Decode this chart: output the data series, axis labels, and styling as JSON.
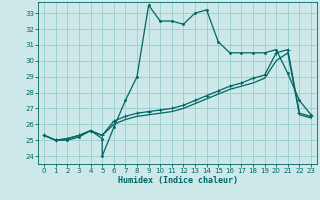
{
  "xlabel": "Humidex (Indice chaleur)",
  "bg_color": "#cce8e8",
  "grid_color": "#99cccc",
  "line_color": "#006666",
  "xlim": [
    -0.5,
    23.5
  ],
  "ylim": [
    23.5,
    33.7
  ],
  "yticks": [
    24,
    25,
    26,
    27,
    28,
    29,
    30,
    31,
    32,
    33
  ],
  "xticks": [
    0,
    1,
    2,
    3,
    4,
    5,
    6,
    7,
    8,
    9,
    10,
    11,
    12,
    13,
    14,
    15,
    16,
    17,
    18,
    19,
    20,
    21,
    22,
    23
  ],
  "line1_x": [
    0,
    1,
    2,
    3,
    4,
    5,
    5,
    6,
    7,
    8,
    9,
    10,
    11,
    12,
    13,
    14,
    15,
    16,
    17,
    18,
    19,
    20,
    21,
    22,
    23
  ],
  "line1_y": [
    25.3,
    25.0,
    25.0,
    25.2,
    25.6,
    25.1,
    24.0,
    25.8,
    27.5,
    29.0,
    33.5,
    32.5,
    32.5,
    32.3,
    33.0,
    33.2,
    31.2,
    30.5,
    30.5,
    30.5,
    30.5,
    30.7,
    29.2,
    27.5,
    26.6
  ],
  "line2_x": [
    0,
    1,
    2,
    3,
    4,
    5,
    6,
    7,
    8,
    9,
    10,
    11,
    12,
    13,
    14,
    15,
    16,
    17,
    18,
    19,
    20,
    21,
    22,
    23
  ],
  "line2_y": [
    25.3,
    25.0,
    25.1,
    25.3,
    25.6,
    25.3,
    26.2,
    26.5,
    26.7,
    26.8,
    26.9,
    27.0,
    27.2,
    27.5,
    27.8,
    28.1,
    28.4,
    28.6,
    28.9,
    29.1,
    30.5,
    30.7,
    26.7,
    26.5
  ],
  "line3_x": [
    0,
    1,
    2,
    3,
    4,
    5,
    6,
    7,
    8,
    9,
    10,
    11,
    12,
    13,
    14,
    15,
    16,
    17,
    18,
    19,
    20,
    21,
    22,
    23
  ],
  "line3_y": [
    25.3,
    25.0,
    25.1,
    25.3,
    25.6,
    25.3,
    26.0,
    26.3,
    26.5,
    26.6,
    26.7,
    26.8,
    27.0,
    27.3,
    27.6,
    27.9,
    28.2,
    28.4,
    28.6,
    28.9,
    30.0,
    30.5,
    26.6,
    26.4
  ]
}
